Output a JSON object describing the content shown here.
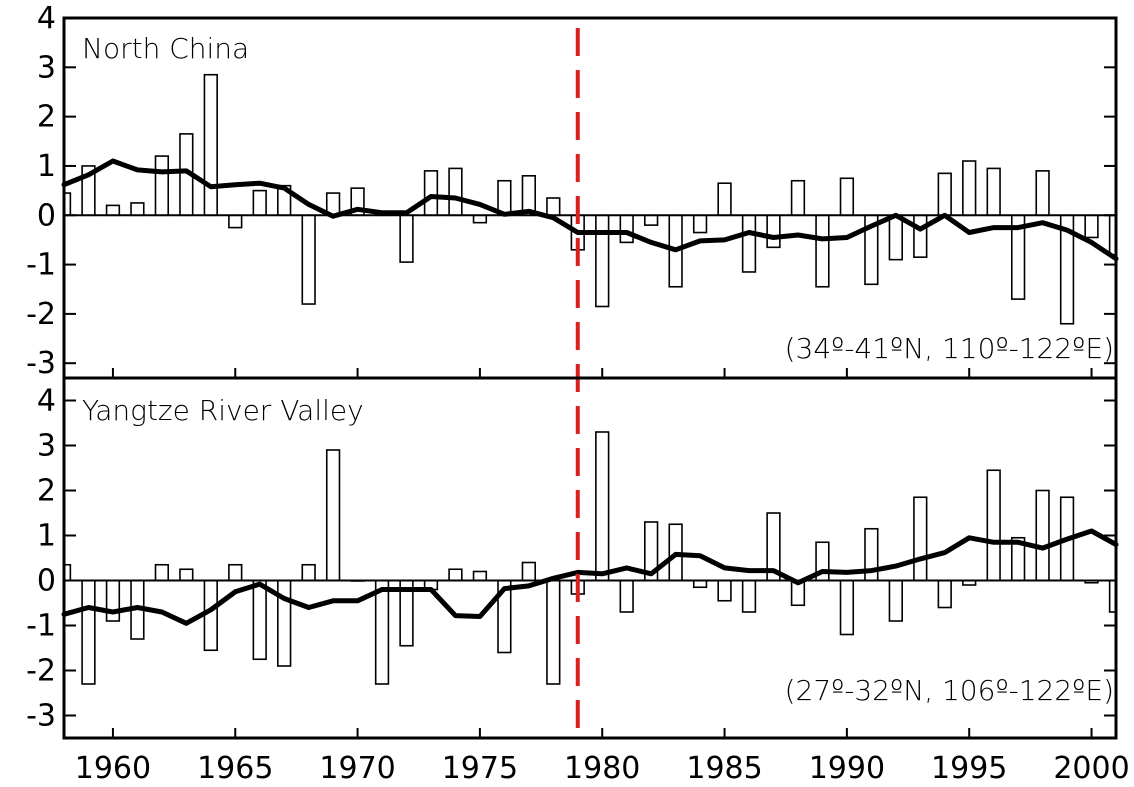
{
  "chart_data": [
    {
      "type": "bar",
      "title": "North China",
      "annotation": "(34º-41ºN, 110º-122ºE)",
      "xlim": [
        1958,
        2001
      ],
      "ylim": [
        -3.3,
        4.0
      ],
      "yticks": [
        -3,
        -2,
        -1,
        0,
        1,
        2,
        3,
        4
      ],
      "x": [
        1958,
        1959,
        1960,
        1961,
        1962,
        1963,
        1964,
        1965,
        1966,
        1967,
        1968,
        1969,
        1970,
        1971,
        1972,
        1973,
        1974,
        1975,
        1976,
        1977,
        1978,
        1979,
        1980,
        1981,
        1982,
        1983,
        1984,
        1985,
        1986,
        1987,
        1988,
        1989,
        1990,
        1991,
        1992,
        1993,
        1994,
        1995,
        1996,
        1997,
        1998,
        1999,
        2000,
        2001
      ],
      "series": [
        {
          "type": "bar",
          "values": [
            0.45,
            1.0,
            0.2,
            0.25,
            1.2,
            1.65,
            2.85,
            -0.25,
            0.5,
            0.6,
            -1.8,
            0.45,
            0.55,
            0.05,
            -0.95,
            0.9,
            0.95,
            -0.15,
            0.7,
            0.8,
            0.35,
            -0.7,
            -1.85,
            -0.55,
            -0.2,
            -1.45,
            -0.35,
            0.65,
            -1.15,
            -0.65,
            0.7,
            -1.45,
            0.75,
            -1.4,
            -0.9,
            -0.85,
            0.85,
            1.1,
            0.95,
            -1.7,
            0.9,
            -2.2,
            -0.45,
            -0.8
          ]
        },
        {
          "type": "line",
          "values": [
            0.62,
            0.82,
            1.1,
            0.92,
            0.88,
            0.9,
            0.58,
            0.62,
            0.65,
            0.55,
            0.22,
            -0.02,
            0.12,
            0.05,
            0.05,
            0.38,
            0.35,
            0.22,
            0.02,
            0.08,
            -0.05,
            -0.35,
            -0.35,
            -0.35,
            -0.55,
            -0.7,
            -0.52,
            -0.5,
            -0.35,
            -0.45,
            -0.4,
            -0.48,
            -0.45,
            -0.22,
            0.0,
            -0.28,
            0.0,
            -0.35,
            -0.25,
            -0.25,
            -0.15,
            -0.3,
            -0.55,
            -0.88
          ]
        }
      ],
      "reference_year": 1979
    },
    {
      "type": "bar",
      "title": "Yangtze River Valley",
      "annotation": "(27º-32ºN, 106º-122ºE)",
      "xlim": [
        1958,
        2001
      ],
      "ylim": [
        -3.5,
        4.5
      ],
      "yticks": [
        -3,
        -2,
        -1,
        0,
        1,
        2,
        3,
        4
      ],
      "xticks": [
        1960,
        1965,
        1970,
        1975,
        1980,
        1985,
        1990,
        1995,
        2000
      ],
      "x": [
        1958,
        1959,
        1960,
        1961,
        1962,
        1963,
        1964,
        1965,
        1966,
        1967,
        1968,
        1969,
        1970,
        1971,
        1972,
        1973,
        1974,
        1975,
        1976,
        1977,
        1978,
        1979,
        1980,
        1981,
        1982,
        1983,
        1984,
        1985,
        1986,
        1987,
        1988,
        1989,
        1990,
        1991,
        1992,
        1993,
        1994,
        1995,
        1996,
        1997,
        1998,
        1999,
        2000,
        2001
      ],
      "series": [
        {
          "type": "bar",
          "values": [
            0.35,
            -2.3,
            -0.9,
            -1.3,
            0.35,
            0.25,
            -1.55,
            0.35,
            -1.75,
            -1.9,
            0.35,
            2.9,
            0.0,
            -2.3,
            -1.45,
            -0.2,
            0.25,
            0.2,
            -1.6,
            0.4,
            -2.3,
            -0.3,
            3.3,
            -0.7,
            1.3,
            1.25,
            -0.15,
            -0.45,
            -0.7,
            1.5,
            -0.55,
            0.85,
            -1.2,
            1.15,
            -0.9,
            1.85,
            -0.6,
            -0.1,
            2.45,
            0.95,
            2.0,
            1.85,
            -0.05,
            -0.7
          ]
        },
        {
          "type": "line",
          "values": [
            -0.75,
            -0.6,
            -0.7,
            -0.6,
            -0.7,
            -0.95,
            -0.65,
            -0.25,
            -0.08,
            -0.4,
            -0.6,
            -0.45,
            -0.45,
            -0.2,
            -0.2,
            -0.2,
            -0.78,
            -0.8,
            -0.18,
            -0.12,
            0.05,
            0.18,
            0.15,
            0.28,
            0.15,
            0.58,
            0.55,
            0.28,
            0.22,
            0.22,
            -0.05,
            0.2,
            0.18,
            0.22,
            0.32,
            0.48,
            0.62,
            0.95,
            0.85,
            0.85,
            0.72,
            0.92,
            1.1,
            0.8
          ]
        }
      ],
      "reference_year": 1979
    }
  ],
  "colors": {
    "bar_fill": "#ffffff",
    "bar_stroke": "#000000",
    "line": "#000000",
    "reference_line": "#d92020"
  }
}
